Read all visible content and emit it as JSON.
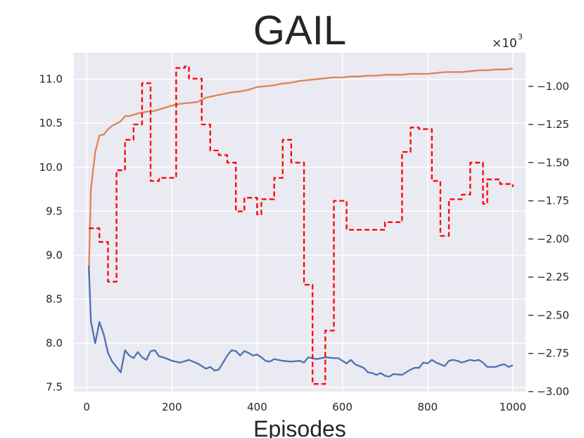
{
  "chart_data": {
    "type": "line",
    "title": "GAIL",
    "xlabel": "Episodes",
    "right_axis_multiplier": "×10",
    "right_axis_multiplier_exp": "3",
    "xlim": [
      -30,
      1030
    ],
    "ylim_left": [
      7.45,
      11.3
    ],
    "ylim_right": [
      -3.0,
      -0.78
    ],
    "grid": true,
    "xticks": [
      0,
      200,
      400,
      600,
      800,
      1000
    ],
    "xtick_labels": [
      "0",
      "200",
      "400",
      "600",
      "800",
      "1000"
    ],
    "yticks_left": [
      7.5,
      8.0,
      8.5,
      9.0,
      9.5,
      10.0,
      10.5,
      11.0
    ],
    "ytick_labels_left": [
      "7.5",
      "8.0",
      "8.5",
      "9.0",
      "9.5",
      "10.0",
      "10.5",
      "11.0"
    ],
    "yticks_right": [
      -3.0,
      -2.75,
      -2.5,
      -2.25,
      -2.0,
      -1.75,
      -1.5,
      -1.25,
      -1.0
    ],
    "ytick_labels_right": [
      "−3.00",
      "−2.75",
      "−2.50",
      "−2.25",
      "−2.00",
      "−1.75",
      "−1.50",
      "−1.25",
      "−1.00"
    ],
    "series": [
      {
        "axis": "left",
        "color": "#dd8452",
        "style": "solid",
        "x": [
          5,
          10,
          20,
          30,
          40,
          50,
          60,
          80,
          90,
          100,
          120,
          140,
          160,
          180,
          200,
          220,
          240,
          260,
          280,
          300,
          320,
          340,
          360,
          380,
          400,
          420,
          440,
          460,
          480,
          500,
          520,
          540,
          560,
          580,
          600,
          620,
          640,
          660,
          680,
          700,
          720,
          740,
          760,
          780,
          800,
          820,
          840,
          860,
          880,
          900,
          920,
          940,
          960,
          980,
          1000
        ],
        "values": [
          8.78,
          9.75,
          10.17,
          10.36,
          10.37,
          10.43,
          10.47,
          10.52,
          10.58,
          10.58,
          10.61,
          10.63,
          10.64,
          10.67,
          10.7,
          10.72,
          10.73,
          10.74,
          10.79,
          10.81,
          10.83,
          10.85,
          10.86,
          10.88,
          10.91,
          10.92,
          10.93,
          10.95,
          10.96,
          10.98,
          10.99,
          11.0,
          11.01,
          11.02,
          11.02,
          11.03,
          11.03,
          11.04,
          11.04,
          11.05,
          11.05,
          11.05,
          11.06,
          11.06,
          11.06,
          11.07,
          11.08,
          11.08,
          11.08,
          11.09,
          11.1,
          11.1,
          11.11,
          11.11,
          11.12
        ]
      },
      {
        "axis": "left",
        "color": "#4c72b0",
        "style": "solid",
        "x": [
          5,
          10,
          20,
          30,
          40,
          50,
          60,
          70,
          80,
          90,
          100,
          110,
          120,
          130,
          140,
          150,
          160,
          170,
          180,
          200,
          220,
          240,
          260,
          280,
          290,
          300,
          310,
          320,
          330,
          340,
          350,
          360,
          370,
          380,
          390,
          400,
          410,
          420,
          430,
          440,
          460,
          480,
          500,
          510,
          520,
          540,
          560,
          580,
          590,
          600,
          610,
          620,
          630,
          640,
          650,
          660,
          670,
          680,
          690,
          700,
          710,
          720,
          740,
          760,
          770,
          780,
          790,
          800,
          810,
          820,
          830,
          840,
          850,
          860,
          870,
          880,
          900,
          910,
          920,
          930,
          940,
          960,
          970,
          980,
          990,
          1000
        ],
        "values": [
          8.88,
          8.25,
          8.0,
          8.24,
          8.1,
          7.89,
          7.79,
          7.73,
          7.67,
          7.92,
          7.86,
          7.83,
          7.9,
          7.84,
          7.81,
          7.91,
          7.92,
          7.85,
          7.84,
          7.8,
          7.78,
          7.81,
          7.77,
          7.71,
          7.73,
          7.69,
          7.7,
          7.78,
          7.86,
          7.92,
          7.91,
          7.86,
          7.91,
          7.89,
          7.86,
          7.87,
          7.84,
          7.8,
          7.79,
          7.82,
          7.8,
          7.79,
          7.8,
          7.78,
          7.84,
          7.82,
          7.84,
          7.83,
          7.83,
          7.8,
          7.77,
          7.81,
          7.76,
          7.74,
          7.72,
          7.67,
          7.66,
          7.64,
          7.66,
          7.63,
          7.62,
          7.65,
          7.64,
          7.7,
          7.72,
          7.72,
          7.78,
          7.77,
          7.81,
          7.78,
          7.76,
          7.74,
          7.8,
          7.81,
          7.8,
          7.78,
          7.81,
          7.8,
          7.81,
          7.78,
          7.73,
          7.73,
          7.75,
          7.76,
          7.73,
          7.75
        ]
      },
      {
        "axis": "right",
        "color": "#ff0000",
        "style": "dashed",
        "x": [
          5,
          20,
          30,
          40,
          50,
          60,
          70,
          80,
          90,
          100,
          110,
          120,
          130,
          140,
          150,
          160,
          170,
          180,
          190,
          200,
          210,
          220,
          230,
          240,
          250,
          260,
          270,
          280,
          290,
          300,
          310,
          320,
          330,
          340,
          350,
          360,
          370,
          380,
          390,
          400,
          410,
          420,
          430,
          440,
          450,
          460,
          470,
          480,
          490,
          500,
          510,
          520,
          530,
          540,
          550,
          560,
          570,
          580,
          590,
          600,
          610,
          620,
          630,
          640,
          650,
          660,
          670,
          680,
          690,
          700,
          710,
          720,
          730,
          740,
          750,
          760,
          770,
          780,
          790,
          800,
          810,
          820,
          830,
          840,
          850,
          860,
          870,
          880,
          890,
          900,
          910,
          920,
          930,
          940,
          950,
          960,
          970,
          980,
          990,
          1000
        ],
        "values": [
          -1.93,
          -1.93,
          -2.02,
          -2.02,
          -2.28,
          -2.28,
          -1.55,
          -1.55,
          -1.35,
          -1.35,
          -1.25,
          -1.25,
          -0.98,
          -0.98,
          -1.62,
          -1.62,
          -1.6,
          -1.6,
          -1.6,
          -1.6,
          -0.88,
          -0.88,
          -0.87,
          -0.95,
          -0.95,
          -0.95,
          -1.25,
          -1.25,
          -1.42,
          -1.42,
          -1.45,
          -1.45,
          -1.5,
          -1.5,
          -1.82,
          -1.82,
          -1.73,
          -1.73,
          -1.73,
          -1.84,
          -1.74,
          -1.74,
          -1.74,
          -1.6,
          -1.6,
          -1.35,
          -1.35,
          -1.5,
          -1.5,
          -1.5,
          -2.3,
          -2.3,
          -2.95,
          -2.95,
          -2.95,
          -2.6,
          -2.6,
          -1.75,
          -1.75,
          -1.75,
          -1.94,
          -1.94,
          -1.94,
          -1.94,
          -1.94,
          -1.94,
          -1.94,
          -1.94,
          -1.94,
          -1.89,
          -1.89,
          -1.89,
          -1.89,
          -1.43,
          -1.43,
          -1.27,
          -1.27,
          -1.28,
          -1.28,
          -1.28,
          -1.62,
          -1.62,
          -1.98,
          -1.98,
          -1.74,
          -1.74,
          -1.74,
          -1.71,
          -1.71,
          -1.5,
          -1.5,
          -1.5,
          -1.77,
          -1.61,
          -1.61,
          -1.61,
          -1.64,
          -1.64,
          -1.64,
          -1.66
        ]
      }
    ]
  }
}
